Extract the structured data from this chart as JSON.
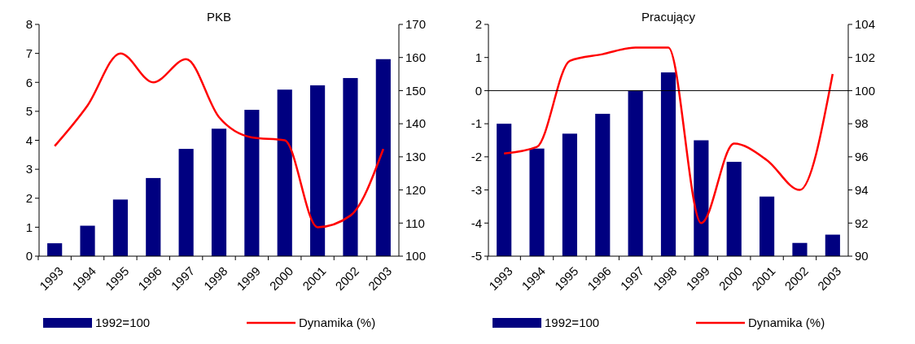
{
  "chart_data": [
    {
      "type": "bar",
      "title": "PKB",
      "categories": [
        "1993",
        "1994",
        "1995",
        "1996",
        "1997",
        "1998",
        "1999",
        "2000",
        "2001",
        "2002",
        "2003"
      ],
      "series": [
        {
          "name": "1992=100",
          "axis": "y2",
          "color": "#000080",
          "values": [
            103.9,
            109.2,
            117.1,
            123.6,
            132.4,
            138.5,
            144.2,
            150.3,
            151.6,
            153.8,
            159.5
          ]
        },
        {
          "name": "Dynamika (%)",
          "type": "line",
          "color": "#ff0000",
          "values": [
            3.8,
            5.2,
            7.0,
            6.0,
            6.8,
            4.8,
            4.1,
            4.0,
            1.0,
            1.4,
            3.7
          ]
        }
      ],
      "ylim": [
        0,
        8
      ],
      "yticks": [
        0,
        1,
        2,
        3,
        4,
        5,
        6,
        7,
        8
      ],
      "y2lim": [
        100,
        170
      ],
      "y2ticks": [
        100,
        110,
        120,
        130,
        140,
        150,
        160,
        170
      ],
      "legend": "bottom",
      "line_style": "solid",
      "marker": "none"
    },
    {
      "type": "bar",
      "title": "Pracujący",
      "categories": [
        "1993",
        "1994",
        "1995",
        "1996",
        "1997",
        "1998",
        "1999",
        "2000",
        "2001",
        "2002",
        "2003"
      ],
      "series": [
        {
          "name": "1992=100",
          "axis": "y2",
          "color": "#000080",
          "values": [
            98.0,
            96.5,
            97.4,
            98.6,
            100.0,
            101.1,
            97.0,
            95.7,
            93.6,
            90.8,
            91.3
          ]
        },
        {
          "name": "Dynamika (%)",
          "type": "line",
          "color": "#ff0000",
          "values": [
            -1.9,
            -1.7,
            0.9,
            1.1,
            1.3,
            1.3,
            -4.0,
            -1.6,
            -2.1,
            -3.0,
            0.5
          ]
        }
      ],
      "ylim": [
        -5,
        2
      ],
      "yticks": [
        -5,
        -4,
        -3,
        -2,
        -1,
        0,
        1,
        2
      ],
      "y2lim": [
        90,
        104
      ],
      "y2ticks": [
        90,
        92,
        94,
        96,
        98,
        100,
        102,
        104
      ],
      "ref_lines": [
        {
          "axis": "y",
          "value": 0,
          "color": "#000000"
        }
      ],
      "legend": "bottom",
      "line_style": "solid",
      "marker": "none"
    }
  ]
}
